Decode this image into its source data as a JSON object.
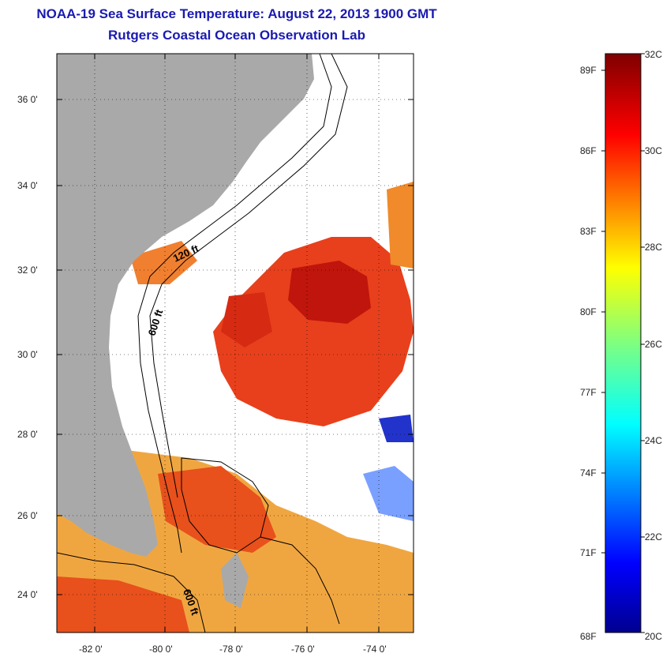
{
  "header": {
    "title": "NOAA-19 Sea Surface Temperature:  August 22, 2013 1900 GMT",
    "subtitle": "Rutgers Coastal Ocean Observation Lab"
  },
  "map": {
    "lat_labels": [
      "36 0'",
      "34 0'",
      "32 0'",
      "30 0'",
      "28 0'",
      "26 0'",
      "24 0'"
    ],
    "lon_labels": [
      "-82 0'",
      "-80 0'",
      "-78 0'",
      "-76 0'",
      "-74 0'"
    ],
    "contour_labels": [
      "120 ft",
      "600 ft",
      "600 ft"
    ],
    "colors": {
      "land": "#a9a9a9",
      "ocean_nodata": "#ffffff",
      "contour": "#000000"
    }
  },
  "colorbar": {
    "celsius_labels": [
      "32C",
      "30C",
      "28C",
      "26C",
      "24C",
      "22C",
      "20C"
    ],
    "fahrenheit_labels": [
      "89F",
      "86F",
      "83F",
      "80F",
      "77F",
      "74F",
      "71F",
      "68F"
    ],
    "range_c": [
      20,
      32
    ],
    "colormap": "jet"
  }
}
